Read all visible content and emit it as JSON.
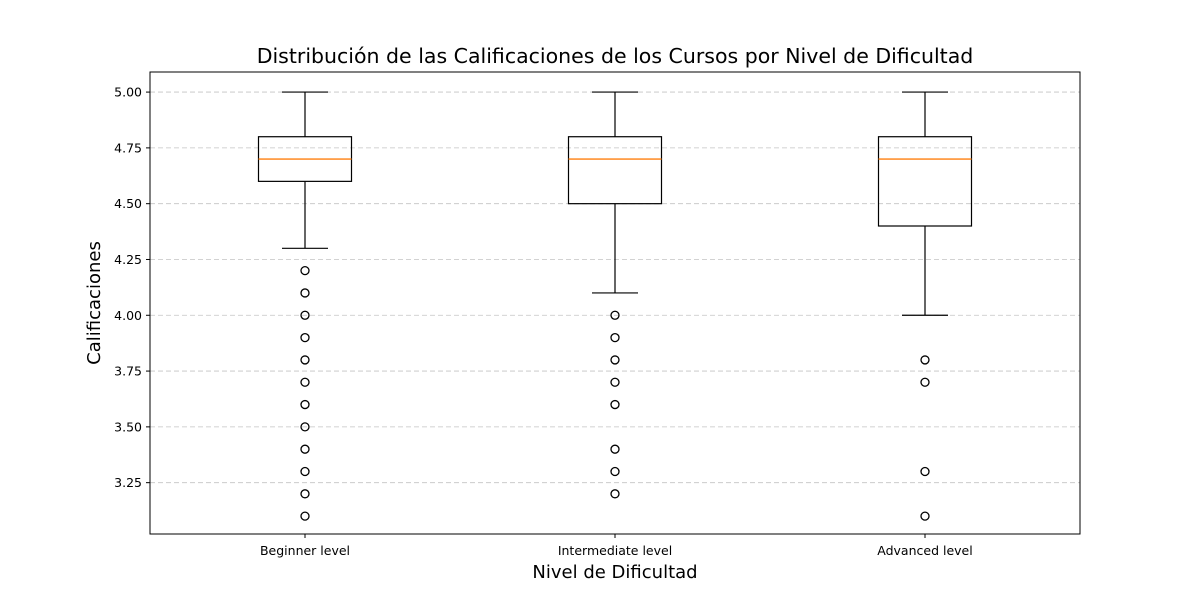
{
  "chart_data": {
    "type": "box",
    "title": "Distribución de las Calificaciones de los Cursos por Nivel de Dificultad",
    "xlabel": "Nivel de Dificultad",
    "ylabel": "Calificaciones",
    "ylim": [
      3.02,
      5.09
    ],
    "yticks": [
      "3.25",
      "3.50",
      "3.75",
      "4.00",
      "4.25",
      "4.50",
      "4.75",
      "5.00"
    ],
    "grid": "y dashed",
    "categories": [
      "Beginner level",
      "Intermediate level",
      "Advanced level"
    ],
    "boxes": [
      {
        "category": "Beginner level",
        "whisker_low": 4.3,
        "q1": 4.6,
        "median": 4.7,
        "q3": 4.8,
        "whisker_high": 5.0,
        "outliers": [
          4.2,
          4.1,
          4.0,
          3.9,
          3.8,
          3.7,
          3.6,
          3.5,
          3.4,
          3.3,
          3.2,
          3.1
        ]
      },
      {
        "category": "Intermediate level",
        "whisker_low": 4.1,
        "q1": 4.5,
        "median": 4.7,
        "q3": 4.8,
        "whisker_high": 5.0,
        "outliers": [
          4.0,
          3.9,
          3.8,
          3.7,
          3.6,
          3.4,
          3.3,
          3.2
        ]
      },
      {
        "category": "Advanced level",
        "whisker_low": 4.0,
        "q1": 4.4,
        "median": 4.7,
        "q3": 4.8,
        "whisker_high": 5.0,
        "outliers": [
          3.8,
          3.7,
          3.3,
          3.1
        ]
      }
    ],
    "colors": {
      "box": "#000000",
      "median": "#ff7f0e",
      "grid": "#b0b0b0"
    }
  }
}
